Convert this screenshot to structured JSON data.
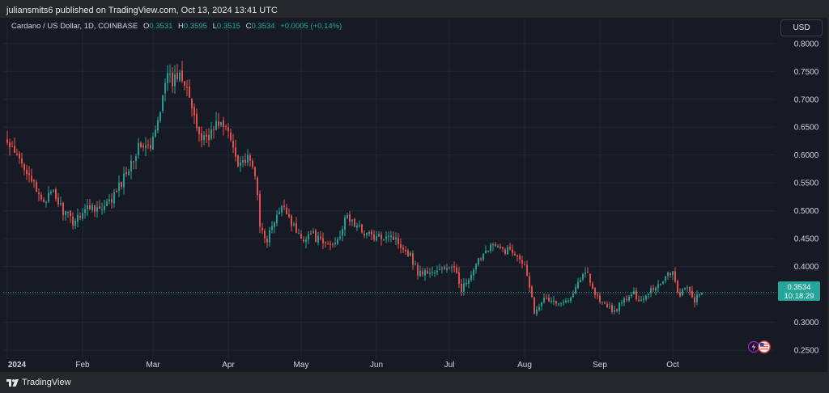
{
  "header": {
    "text": "juliansmits6 published on TradingView.com, Oct 13, 2024 13:41 UTC"
  },
  "legend": {
    "symbol": "Cardano / US Dollar, 1D, COINBASE",
    "o_label": "O",
    "o": "0.3531",
    "h_label": "H",
    "h": "0.3595",
    "l_label": "L",
    "l": "0.3515",
    "c_label": "C",
    "c": "0.3534",
    "change": "+0.0005 (+0.14%)"
  },
  "currency_button": "USD",
  "price_tag": {
    "price": "0.3534",
    "countdown": "10:18:29"
  },
  "footer": {
    "brand": "TradingView"
  },
  "icons": [
    "lightning-icon",
    "us-flag-icon",
    "tradingview-logo-icon"
  ],
  "colors": {
    "up": "#26a69a",
    "down": "#ef5350",
    "background": "#161a25",
    "text": "#d1d4dc"
  },
  "chart_data": {
    "type": "candlestick",
    "title": "Cardano / US Dollar, 1D, COINBASE",
    "ylim": [
      0.24,
      0.82
    ],
    "y_ticks": [
      "0.8000",
      "0.7500",
      "0.7000",
      "0.6500",
      "0.6000",
      "0.5500",
      "0.5000",
      "0.4500",
      "0.4000",
      "0.3500",
      "0.3000",
      "0.2500"
    ],
    "x_ticks": [
      "2024",
      "Feb",
      "Mar",
      "Apr",
      "May",
      "Jun",
      "Jul",
      "Aug",
      "Sep",
      "Oct"
    ],
    "x_tick_dates": [
      "2024-01-01",
      "2024-02-01",
      "2024-03-01",
      "2024-04-01",
      "2024-05-01",
      "2024-06-01",
      "2024-07-01",
      "2024-08-01",
      "2024-09-01",
      "2024-10-01"
    ],
    "grid": true,
    "last_price": 0.3534,
    "anchor_closes": [
      [
        "2024-01-01",
        0.62
      ],
      [
        "2024-01-04",
        0.6
      ],
      [
        "2024-01-08",
        0.58
      ],
      [
        "2024-01-10",
        0.57
      ],
      [
        "2024-01-13",
        0.53
      ],
      [
        "2024-01-16",
        0.52
      ],
      [
        "2024-01-20",
        0.53
      ],
      [
        "2024-01-24",
        0.5
      ],
      [
        "2024-01-28",
        0.48
      ],
      [
        "2024-02-01",
        0.5
      ],
      [
        "2024-02-05",
        0.51
      ],
      [
        "2024-02-09",
        0.5
      ],
      [
        "2024-02-13",
        0.52
      ],
      [
        "2024-02-17",
        0.55
      ],
      [
        "2024-02-21",
        0.59
      ],
      [
        "2024-02-25",
        0.62
      ],
      [
        "2024-02-29",
        0.61
      ],
      [
        "2024-03-03",
        0.66
      ],
      [
        "2024-03-06",
        0.74
      ],
      [
        "2024-03-09",
        0.73
      ],
      [
        "2024-03-12",
        0.75
      ],
      [
        "2024-03-15",
        0.73
      ],
      [
        "2024-03-18",
        0.66
      ],
      [
        "2024-03-21",
        0.63
      ],
      [
        "2024-03-25",
        0.64
      ],
      [
        "2024-03-28",
        0.66
      ],
      [
        "2024-04-01",
        0.64
      ],
      [
        "2024-04-05",
        0.59
      ],
      [
        "2024-04-09",
        0.59
      ],
      [
        "2024-04-12",
        0.57
      ],
      [
        "2024-04-14",
        0.47
      ],
      [
        "2024-04-17",
        0.45
      ],
      [
        "2024-04-20",
        0.48
      ],
      [
        "2024-04-24",
        0.51
      ],
      [
        "2024-04-28",
        0.47
      ],
      [
        "2024-05-01",
        0.45
      ],
      [
        "2024-05-05",
        0.46
      ],
      [
        "2024-05-10",
        0.44
      ],
      [
        "2024-05-14",
        0.44
      ],
      [
        "2024-05-17",
        0.46
      ],
      [
        "2024-05-20",
        0.49
      ],
      [
        "2024-05-24",
        0.47
      ],
      [
        "2024-05-28",
        0.46
      ],
      [
        "2024-06-01",
        0.45
      ],
      [
        "2024-06-06",
        0.46
      ],
      [
        "2024-06-11",
        0.44
      ],
      [
        "2024-06-15",
        0.42
      ],
      [
        "2024-06-18",
        0.39
      ],
      [
        "2024-06-22",
        0.39
      ],
      [
        "2024-06-26",
        0.39
      ],
      [
        "2024-06-30",
        0.4
      ],
      [
        "2024-07-04",
        0.39
      ],
      [
        "2024-07-06",
        0.36
      ],
      [
        "2024-07-10",
        0.38
      ],
      [
        "2024-07-14",
        0.42
      ],
      [
        "2024-07-18",
        0.44
      ],
      [
        "2024-07-22",
        0.43
      ],
      [
        "2024-07-26",
        0.43
      ],
      [
        "2024-07-30",
        0.42
      ],
      [
        "2024-08-02",
        0.39
      ],
      [
        "2024-08-05",
        0.32
      ],
      [
        "2024-08-08",
        0.34
      ],
      [
        "2024-08-12",
        0.34
      ],
      [
        "2024-08-16",
        0.33
      ],
      [
        "2024-08-20",
        0.35
      ],
      [
        "2024-08-24",
        0.38
      ],
      [
        "2024-08-27",
        0.39
      ],
      [
        "2024-08-30",
        0.35
      ],
      [
        "2024-09-03",
        0.33
      ],
      [
        "2024-09-07",
        0.32
      ],
      [
        "2024-09-11",
        0.34
      ],
      [
        "2024-09-15",
        0.35
      ],
      [
        "2024-09-18",
        0.34
      ],
      [
        "2024-09-22",
        0.36
      ],
      [
        "2024-09-26",
        0.37
      ],
      [
        "2024-09-29",
        0.39
      ],
      [
        "2024-10-01",
        0.39
      ],
      [
        "2024-10-03",
        0.35
      ],
      [
        "2024-10-07",
        0.36
      ],
      [
        "2024-10-10",
        0.34
      ],
      [
        "2024-10-13",
        0.3534
      ]
    ]
  }
}
